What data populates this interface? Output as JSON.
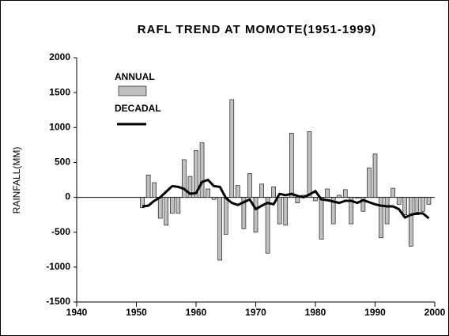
{
  "chart_data": {
    "type": "bar",
    "title": "RAFL TREND AT MOMOTE(1951-1999)",
    "y_label": "RAINFALL(MM)",
    "x": [
      1951,
      1952,
      1953,
      1954,
      1955,
      1956,
      1957,
      1958,
      1959,
      1960,
      1961,
      1962,
      1963,
      1964,
      1965,
      1966,
      1967,
      1968,
      1969,
      1970,
      1971,
      1972,
      1973,
      1974,
      1975,
      1976,
      1977,
      1978,
      1979,
      1980,
      1981,
      1982,
      1983,
      1984,
      1985,
      1986,
      1987,
      1988,
      1989,
      1990,
      1991,
      1992,
      1993,
      1994,
      1995,
      1996,
      1997,
      1998,
      1999
    ],
    "series": [
      {
        "name": "ANNUAL",
        "type": "bar",
        "color": "#c0c0c0",
        "values": [
          -150,
          320,
          210,
          -300,
          -400,
          -230,
          -230,
          540,
          300,
          670,
          780,
          120,
          -30,
          -900,
          -530,
          1400,
          170,
          -450,
          340,
          -500,
          190,
          -800,
          150,
          -380,
          -400,
          920,
          -80,
          30,
          940,
          -50,
          -600,
          120,
          -380,
          30,
          110,
          -380,
          -10,
          -200,
          420,
          620,
          -580,
          -380,
          130,
          -100,
          -250,
          -700,
          -250,
          -200,
          -100
        ]
      },
      {
        "name": "DECADAL",
        "type": "line",
        "color": "#000000",
        "values": [
          -130,
          -120,
          -50,
          0,
          80,
          160,
          150,
          120,
          50,
          60,
          220,
          250,
          160,
          150,
          -10,
          -80,
          -110,
          -70,
          -30,
          -170,
          -120,
          -80,
          -100,
          50,
          30,
          50,
          20,
          0,
          40,
          90,
          -30,
          -40,
          -60,
          -80,
          -50,
          -50,
          -80,
          -40,
          -70,
          -100,
          -120,
          -130,
          -130,
          -170,
          -290,
          -250,
          -230,
          -230,
          -300
        ]
      }
    ],
    "xlim": [
      1940,
      2000
    ],
    "xticks": [
      1940,
      1950,
      1960,
      1970,
      1980,
      1990,
      2000
    ],
    "ylim": [
      -1500,
      2000
    ],
    "yticks": [
      -1500,
      -1000,
      -500,
      0,
      500,
      1000,
      1500,
      2000
    ]
  }
}
